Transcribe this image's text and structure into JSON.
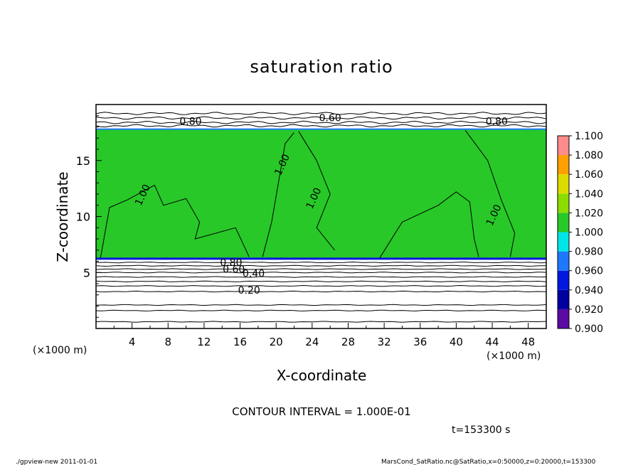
{
  "chart_data": {
    "type": "heatmap",
    "title": "saturation ratio",
    "xlabel": "X-coordinate",
    "ylabel": "Z-coordinate",
    "x_unit": "(×1000 m)",
    "z_unit": "(×1000 m)",
    "xlim": [
      0,
      50
    ],
    "ylim": [
      0,
      20
    ],
    "x_ticks": [
      4,
      8,
      12,
      16,
      20,
      24,
      28,
      32,
      36,
      40,
      44,
      48
    ],
    "y_ticks": [
      5,
      10,
      15
    ],
    "colorbar": {
      "levels": [
        0.9,
        0.92,
        0.94,
        0.96,
        0.98,
        1.0,
        1.02,
        1.04,
        1.06,
        1.08,
        1.1
      ],
      "labels": [
        "0.900",
        "0.920",
        "0.940",
        "0.960",
        "0.980",
        "1.000",
        "1.020",
        "1.040",
        "1.060",
        "1.080",
        "1.100"
      ],
      "colors": [
        "#5a0aa0",
        "#0000a0",
        "#0018e0",
        "#1e78ff",
        "#00e6e6",
        "#28c828",
        "#8cdc00",
        "#dcdc00",
        "#ffa000",
        "#ff3c00",
        "#ff8c8c"
      ]
    },
    "field_regions": {
      "saturated_z_range": [
        6.2,
        17.8
      ],
      "saturated_value": 1.0
    },
    "contour_lines": {
      "upper_lower_levels_z": [
        0.6,
        1.6,
        2.1,
        3.3,
        3.8,
        4.2,
        4.6,
        5.0,
        5.3,
        5.6,
        5.9
      ],
      "upper_levels_z": [
        18.1,
        18.4,
        18.8,
        19.2
      ]
    },
    "contour_labels": [
      {
        "text": "0.60",
        "x": 26.0,
        "z": 18.5
      },
      {
        "text": "0.80",
        "x": 10.5,
        "z": 18.2
      },
      {
        "text": "0.80",
        "x": 44.5,
        "z": 18.2
      },
      {
        "text": "1.00",
        "x": 5.5,
        "z": 11.8
      },
      {
        "text": "1.00",
        "x": 21.0,
        "z": 14.5
      },
      {
        "text": "1.00",
        "x": 24.5,
        "z": 11.5
      },
      {
        "text": "1.00",
        "x": 44.5,
        "z": 10.0
      },
      {
        "text": "0.80",
        "x": 15.0,
        "z": 5.6
      },
      {
        "text": "0.60",
        "x": 15.3,
        "z": 5.0
      },
      {
        "text": "0.40",
        "x": 17.5,
        "z": 4.6
      },
      {
        "text": "0.20",
        "x": 17.0,
        "z": 3.1
      }
    ]
  },
  "footer": {
    "contour_interval": "CONTOUR INTERVAL = 1.000E-01",
    "time": "t=153300 s",
    "program": "./gpview-new  2011-01-01",
    "source": "MarsCond_SatRatio.nc@SatRatio,x=0:50000,z=0:20000,t=153300"
  }
}
